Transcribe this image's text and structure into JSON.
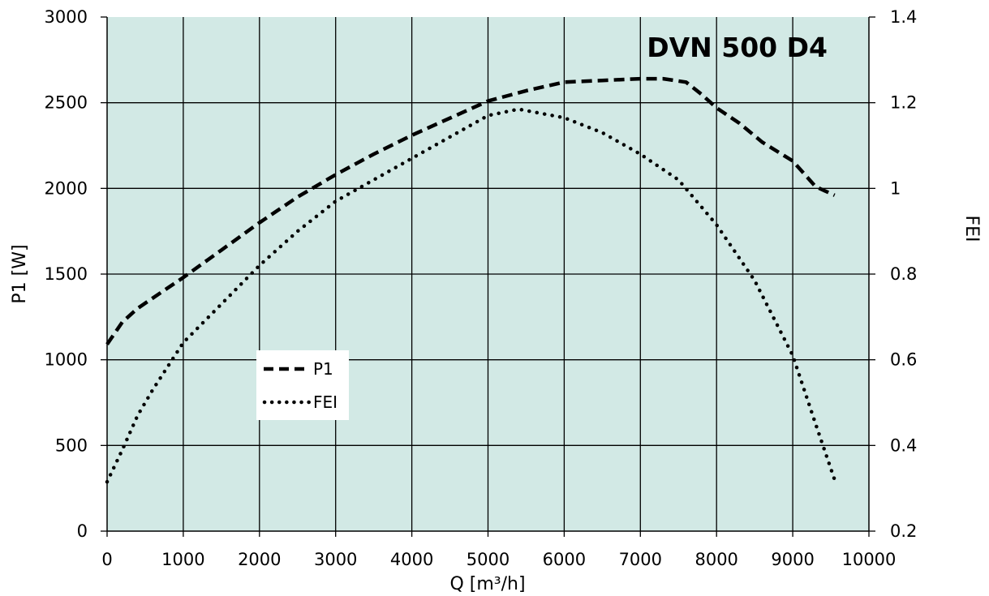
{
  "chart_data": {
    "type": "line",
    "title": "DVN 500 D4",
    "xlabel": "Q [m³/h]",
    "ylabel": "P1 [W]",
    "y2label": "FEI",
    "xlim": [
      0,
      10000
    ],
    "ylim": [
      0,
      3000
    ],
    "y2lim": [
      0.2,
      1.4
    ],
    "xticks": [
      "0",
      "1000",
      "2000",
      "3000",
      "4000",
      "5000",
      "6000",
      "7000",
      "8000",
      "9000",
      "10000"
    ],
    "yticks": [
      "0",
      "500",
      "1000",
      "1500",
      "2000",
      "2500",
      "3000"
    ],
    "y2ticks": [
      "0.2",
      "0.4",
      "0.6",
      "0.8",
      "1",
      "1.2",
      "1.4"
    ],
    "grid": true,
    "legend_position": "center-left",
    "colors": {
      "plot_background": "#d2e9e5",
      "line": "#000000",
      "grid": "#000000"
    },
    "series": [
      {
        "name": "P1",
        "axis": "left",
        "style": "dashed",
        "x": [
          0,
          200,
          400,
          600,
          1000,
          1500,
          2000,
          2500,
          3000,
          3500,
          4000,
          4500,
          5000,
          5500,
          6000,
          6500,
          7000,
          7300,
          7600,
          7800,
          8000,
          8300,
          8600,
          9000,
          9300,
          9550
        ],
        "y": [
          1090,
          1220,
          1300,
          1360,
          1480,
          1640,
          1800,
          1950,
          2080,
          2200,
          2310,
          2410,
          2510,
          2570,
          2620,
          2630,
          2640,
          2640,
          2620,
          2550,
          2470,
          2380,
          2270,
          2160,
          2010,
          1960
        ]
      },
      {
        "name": "FEI",
        "axis": "right",
        "style": "dotted",
        "x": [
          0,
          200,
          400,
          600,
          1000,
          1500,
          2000,
          2500,
          3000,
          3500,
          4000,
          4500,
          5000,
          5400,
          6000,
          6500,
          7000,
          7500,
          8000,
          8500,
          9000,
          9300,
          9550
        ],
        "y": [
          0.315,
          0.39,
          0.47,
          0.53,
          0.64,
          0.73,
          0.82,
          0.9,
          0.97,
          1.02,
          1.07,
          1.12,
          1.17,
          1.185,
          1.165,
          1.13,
          1.08,
          1.02,
          0.915,
          0.785,
          0.61,
          0.45,
          0.32
        ]
      }
    ]
  }
}
